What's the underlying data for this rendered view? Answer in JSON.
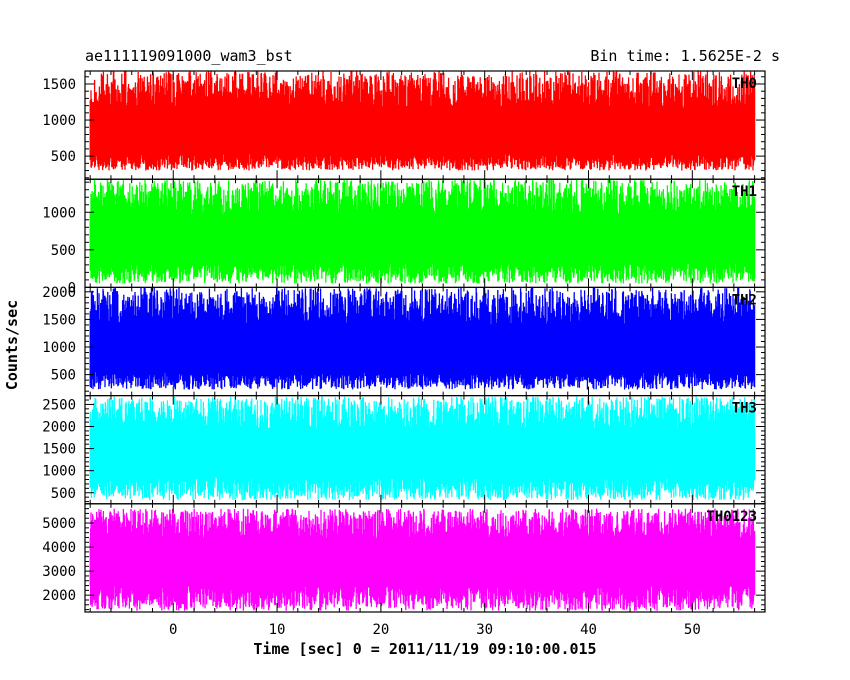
{
  "header": {
    "title": "ae111119091000_wam3_bst",
    "bin_time": "Bin time: 1.5625E-2 s"
  },
  "chart_data": {
    "type": "line",
    "xlabel": "Time [sec] 0 = 2011/11/19 09:10:00.015",
    "ylabel": "Counts/sec",
    "xlim": [
      -8.5,
      57
    ],
    "x_data_range": [
      -8.0,
      56.0
    ],
    "bin_time_s": 0.015625,
    "xticks": [
      0,
      10,
      20,
      30,
      40,
      50
    ],
    "grid": false,
    "panels": [
      {
        "name": "TH0",
        "color": "#ff0000",
        "ylim": [
          180,
          1680
        ],
        "yticks": [
          500,
          1000,
          1500
        ],
        "mean": 720,
        "low": 300,
        "high": 1680
      },
      {
        "name": "TH1",
        "color": "#00ff00",
        "ylim": [
          0,
          1440
        ],
        "yticks": [
          0,
          500,
          1000
        ],
        "mean": 560,
        "low": 50,
        "high": 1440
      },
      {
        "name": "TH2",
        "color": "#0000ff",
        "ylim": [
          120,
          2080
        ],
        "yticks": [
          500,
          1000,
          1500,
          2000
        ],
        "mean": 820,
        "low": 230,
        "high": 2080
      },
      {
        "name": "TH3",
        "color": "#00ffff",
        "ylim": [
          250,
          2700
        ],
        "yticks": [
          500,
          1000,
          1500,
          2000,
          2500
        ],
        "mean": 1300,
        "low": 330,
        "high": 2680
      },
      {
        "name": "TH0123",
        "color": "#ff00ff",
        "ylim": [
          1300,
          5800
        ],
        "yticks": [
          2000,
          3000,
          4000,
          5000
        ],
        "mean": 3300,
        "low": 1350,
        "high": 5600
      }
    ]
  }
}
